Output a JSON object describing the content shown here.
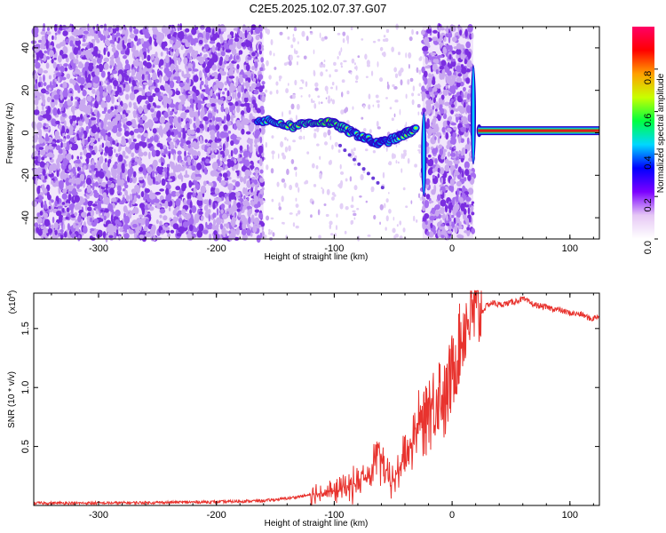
{
  "title": "C2E5.2025.102.07.37.G07",
  "colors": {
    "snr_line": "#e8332e",
    "sparse_dot": "#c9a8f0",
    "dense_dot": "#7b2ee0",
    "track_core": "#d81e1e",
    "track_glow": "#2fd24a"
  },
  "chart_data": [
    {
      "type": "heatmap",
      "name": "spectrogram",
      "xlabel": "Height of straight line (km)",
      "ylabel": "Frequency (Hz)",
      "xlim": [
        -355,
        125
      ],
      "ylim": [
        -50,
        50
      ],
      "x_ticks": [
        -300,
        -200,
        -100,
        0,
        100
      ],
      "x_tick_labels": [
        "-300",
        "-200",
        "-100",
        "0",
        "100"
      ],
      "y_ticks": [
        -40,
        -20,
        0,
        20,
        40
      ],
      "y_tick_labels": [
        "-40",
        "-20",
        "0",
        "20",
        "40"
      ],
      "colorbar": {
        "label": "Normalized spectral amplitude",
        "range": [
          0,
          1
        ],
        "ticks": [
          0.0,
          0.2,
          0.4,
          0.6,
          0.8
        ],
        "tick_labels": [
          "0.0",
          "0.2",
          "0.4",
          "0.6",
          "0.8"
        ],
        "colormap": [
          "#ffffff",
          "#e6c8f5",
          "#7b00ff",
          "#0000ff",
          "#00d8ff",
          "#00ff40",
          "#c8ff00",
          "#ffa000",
          "#ff0000",
          "#ff0066"
        ]
      },
      "regions": [
        {
          "description": "broadband noise",
          "x_range": [
            -355,
            -160
          ],
          "freq_range": [
            -50,
            50
          ],
          "amplitude": 0.15
        },
        {
          "description": "sparse noise",
          "x_range": [
            -160,
            -25
          ],
          "freq_range": [
            -50,
            50
          ],
          "amplitude": 0.05
        },
        {
          "description": "broadband noise",
          "x_range": [
            -25,
            18
          ],
          "freq_range": [
            -50,
            50
          ],
          "amplitude": 0.15
        }
      ],
      "track": {
        "x": [
          -165,
          -150,
          -135,
          -120,
          -105,
          -95,
          -85,
          -75,
          -65,
          -55,
          -45,
          -38,
          -30
        ],
        "freq": [
          6,
          5,
          3,
          5,
          5,
          3,
          0,
          -2,
          -5,
          -4,
          -2,
          0,
          2
        ],
        "amplitude": [
          0.45,
          0.5,
          0.55,
          0.55,
          0.6,
          0.55,
          0.5,
          0.5,
          0.45,
          0.45,
          0.5,
          0.55,
          0.5
        ]
      },
      "carrier": {
        "x_range": [
          22,
          125
        ],
        "freq": 1,
        "amplitude": 0.9
      }
    },
    {
      "type": "line",
      "name": "snr",
      "xlabel": "Height of straight line (km)",
      "ylabel": "SNR (10 * v/v)",
      "y_multiplier": "(x10",
      "y_multiplier_exp": "4",
      "y_multiplier_close": ")",
      "xlim": [
        -355,
        125
      ],
      "ylim": [
        0,
        1.8
      ],
      "x_ticks": [
        -300,
        -200,
        -100,
        0,
        100
      ],
      "x_tick_labels": [
        "-300",
        "-200",
        "-100",
        "0",
        "100"
      ],
      "y_ticks": [
        0.5,
        1.0,
        1.5
      ],
      "y_tick_labels": [
        "0.5",
        "1.0",
        "1.5"
      ],
      "series": [
        {
          "name": "SNR",
          "x": [
            -355,
            -300,
            -250,
            -200,
            -160,
            -140,
            -120,
            -100,
            -90,
            -80,
            -70,
            -62,
            -58,
            -52,
            -45,
            -40,
            -35,
            -30,
            -26,
            -22,
            -18,
            -14,
            -10,
            -6,
            -2,
            2,
            6,
            10,
            14,
            18,
            22,
            26,
            30,
            35,
            40,
            50,
            60,
            70,
            80,
            90,
            100,
            110,
            118,
            125
          ],
          "y": [
            0.02,
            0.02,
            0.025,
            0.03,
            0.04,
            0.06,
            0.09,
            0.12,
            0.15,
            0.2,
            0.25,
            0.45,
            0.32,
            0.18,
            0.3,
            0.45,
            0.5,
            0.7,
            0.65,
            0.95,
            0.8,
            0.9,
            1.0,
            0.85,
            1.05,
            1.2,
            1.35,
            1.5,
            1.6,
            1.63,
            1.62,
            1.65,
            1.7,
            1.72,
            1.7,
            1.72,
            1.75,
            1.7,
            1.68,
            1.66,
            1.63,
            1.62,
            1.58,
            1.61
          ]
        }
      ]
    }
  ]
}
